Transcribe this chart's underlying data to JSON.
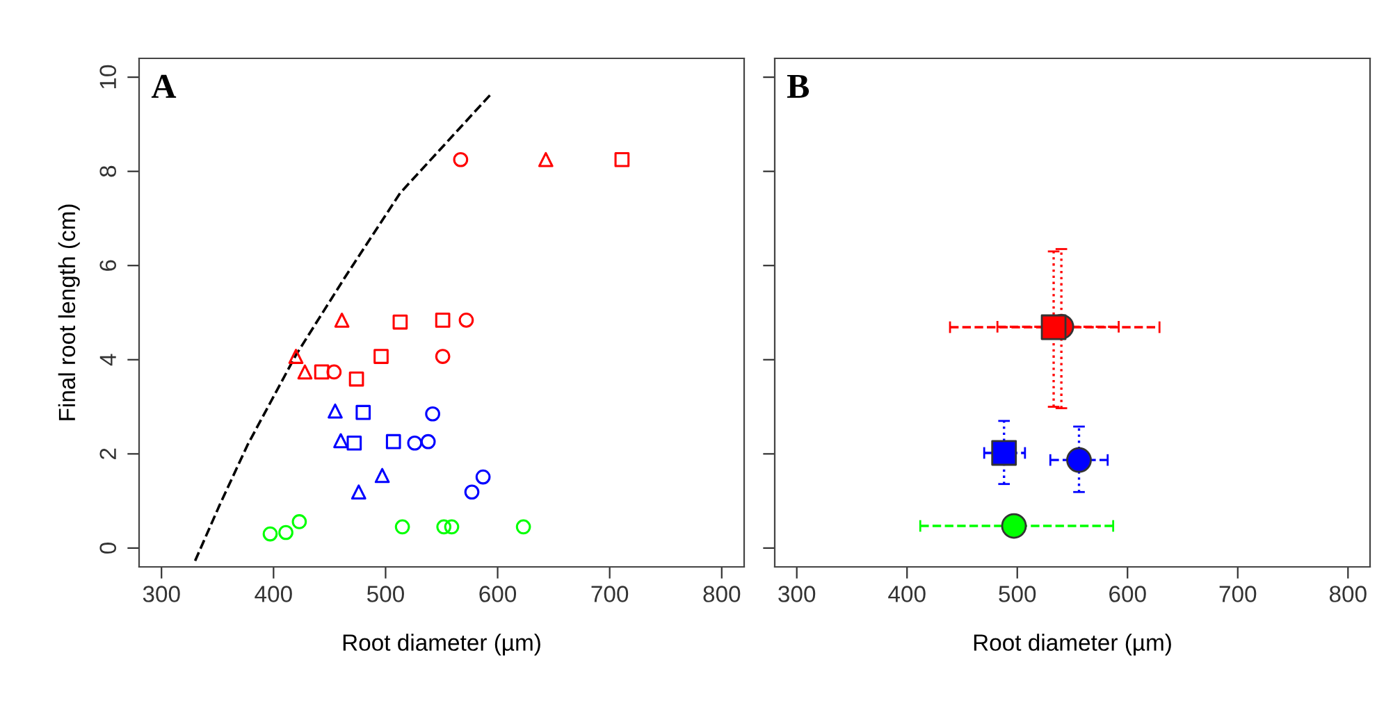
{
  "chart_data": [
    {
      "type": "scatter",
      "title": "A",
      "xlabel": "Root diameter (µm)",
      "ylabel": "Final root length (cm)",
      "xlim": [
        280,
        820
      ],
      "ylim": [
        -0.4,
        10.4
      ],
      "xticks": [
        300,
        400,
        500,
        600,
        700,
        800
      ],
      "yticks": [
        0,
        2,
        4,
        6,
        8,
        10
      ],
      "grid": false,
      "legend": false,
      "series": [
        {
          "color": "#ff0000",
          "marker": "circle",
          "x": [
            567,
            572,
            551,
            454
          ],
          "values": [
            8.25,
            4.84,
            4.07,
            3.74
          ]
        },
        {
          "color": "#ff0000",
          "marker": "triangle",
          "x": [
            643,
            461,
            420,
            428
          ],
          "values": [
            8.25,
            4.84,
            4.07,
            3.74
          ]
        },
        {
          "color": "#ff0000",
          "marker": "square",
          "x": [
            711,
            513,
            551,
            496,
            443,
            474
          ],
          "values": [
            8.25,
            4.8,
            4.84,
            4.07,
            3.74,
            3.59
          ]
        },
        {
          "color": "#0000ff",
          "marker": "circle",
          "x": [
            542,
            526,
            538,
            587,
            577
          ],
          "values": [
            2.85,
            2.23,
            2.26,
            1.51,
            1.19
          ]
        },
        {
          "color": "#0000ff",
          "marker": "triangle",
          "x": [
            455,
            460,
            497,
            476
          ],
          "values": [
            2.91,
            2.28,
            1.54,
            1.19
          ]
        },
        {
          "color": "#0000ff",
          "marker": "square",
          "x": [
            480,
            472,
            507
          ],
          "values": [
            2.88,
            2.23,
            2.26
          ]
        },
        {
          "color": "#00ff00",
          "marker": "circle",
          "x": [
            397,
            411,
            423,
            515,
            552,
            559,
            623
          ],
          "values": [
            0.3,
            0.33,
            0.56,
            0.45,
            0.45,
            0.45,
            0.45
          ]
        },
        {
          "type": "line",
          "color": "#000000",
          "marker": "none",
          "line_style": "dashed",
          "x": [
            330,
            352,
            377,
            420,
            464,
            513,
            594
          ],
          "values": [
            -0.27,
            0.92,
            2.2,
            4.1,
            5.76,
            7.54,
            9.64
          ]
        }
      ]
    },
    {
      "type": "scatter",
      "title": "B",
      "xlabel": "Root diameter (µm)",
      "xlim": [
        280,
        820
      ],
      "ylim": [
        -0.4,
        10.4
      ],
      "xticks": [
        300,
        400,
        500,
        600,
        700,
        800
      ],
      "yticks": [
        0,
        2,
        4,
        6,
        8,
        10
      ],
      "grid": false,
      "legend": false,
      "tick_labels": "x",
      "series": [
        {
          "color": "#ff0000",
          "marker": "circle",
          "x": [
            540
          ],
          "values": [
            4.7
          ],
          "errors": [
            [
              2.97,
              6.35
            ]
          ],
          "xerrors": [
            [
              482,
              592
            ]
          ]
        },
        {
          "color": "#ff0000",
          "marker": "square",
          "x": [
            533
          ],
          "values": [
            4.69
          ],
          "errors": [
            [
              3.0,
              6.3
            ]
          ],
          "xerrors": [
            [
              439,
              629
            ]
          ]
        },
        {
          "color": "#0000ff",
          "marker": "square",
          "x": [
            488
          ],
          "values": [
            2.02
          ],
          "errors": [
            [
              1.36,
              2.7
            ]
          ],
          "xerrors": [
            [
              470,
              507
            ]
          ]
        },
        {
          "color": "#0000ff",
          "marker": "circle",
          "x": [
            556
          ],
          "values": [
            1.87
          ],
          "errors": [
            [
              1.19,
              2.58
            ]
          ],
          "xerrors": [
            [
              530,
              582
            ]
          ]
        },
        {
          "color": "#00ff00",
          "marker": "circle",
          "x": [
            497
          ],
          "values": [
            0.47
          ],
          "xerrors": [
            [
              412,
              587
            ]
          ]
        }
      ]
    }
  ]
}
